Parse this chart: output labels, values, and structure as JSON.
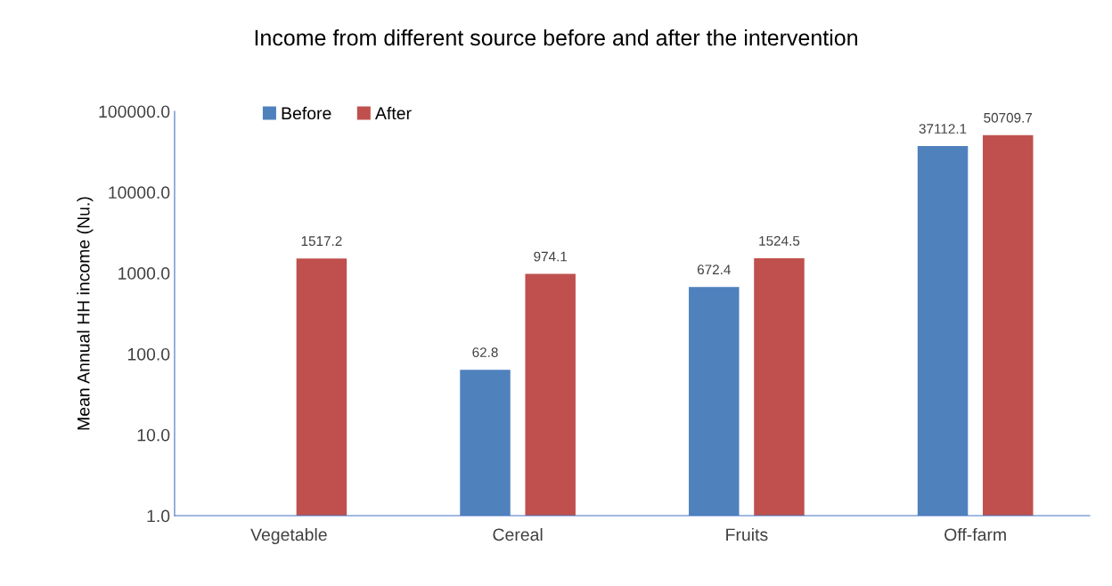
{
  "chart_data": {
    "type": "bar",
    "title": "Income from different source before and after the intervention",
    "ylabel": "Mean Annual HH income (Nu.)",
    "categories": [
      "Vegetable",
      "Cereal",
      "Fruits",
      "Off-farm"
    ],
    "series": [
      {
        "name": "Before",
        "color": "#4f81bd",
        "values": [
          null,
          62.8,
          672.4,
          37112.1
        ]
      },
      {
        "name": "After",
        "color": "#c0504d",
        "values": [
          1517.2,
          974.1,
          1524.5,
          50709.7
        ]
      }
    ],
    "log": "y",
    "ylim": [
      1,
      100000
    ],
    "yticks": [
      {
        "value": 1,
        "label": "1.0"
      },
      {
        "value": 10,
        "label": "10.0"
      },
      {
        "value": 100,
        "label": "100.0"
      },
      {
        "value": 1000,
        "label": "1000.0"
      },
      {
        "value": 10000,
        "label": "10000.0"
      },
      {
        "value": 100000,
        "label": "100000.0"
      }
    ],
    "grid": false,
    "legend": "top left",
    "data_labels": true
  }
}
